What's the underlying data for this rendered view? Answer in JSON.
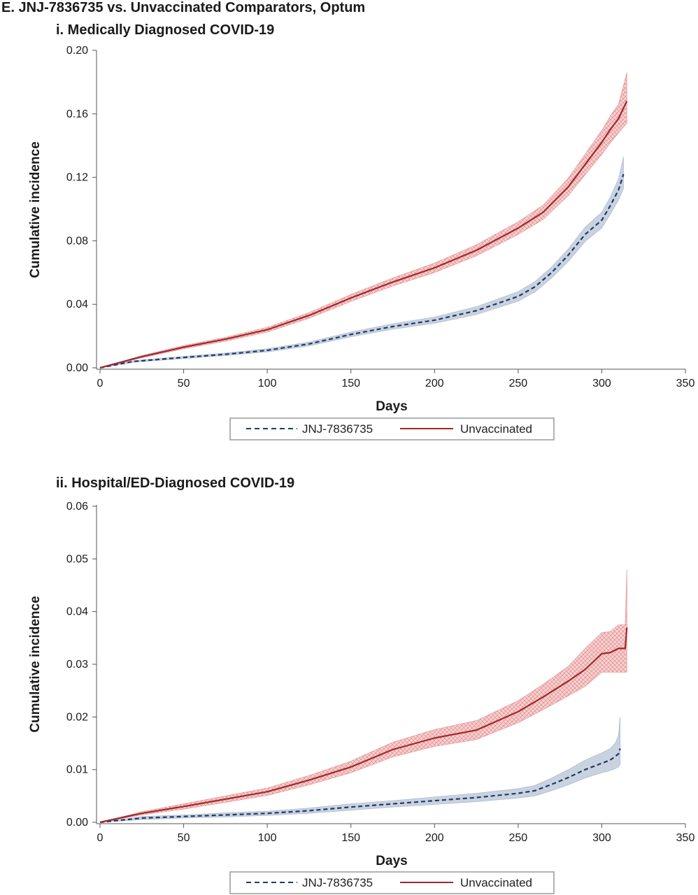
{
  "figure_title": "E. JNJ-7836735 vs. Unvaccinated Comparators, Optum",
  "colors": {
    "jnj_line": "#1f3a68",
    "jnj_band": "#c7d0de",
    "unvax_line": "#a0282a",
    "unvax_band": "#f6d3d3",
    "unvax_hatch": "#e48a8a",
    "legend_border": "#9a9a9a"
  },
  "chart_data": [
    {
      "type": "line",
      "title": "i. Medically Diagnosed COVID-19",
      "xlabel": "Days",
      "ylabel": "Cumulative incidence",
      "xlim": [
        0,
        350
      ],
      "ylim": [
        0,
        0.2
      ],
      "x_ticks": [
        "0",
        "50",
        "100",
        "150",
        "200",
        "250",
        "300",
        "350"
      ],
      "y_ticks": [
        "0.00",
        "0.04",
        "0.08",
        "0.12",
        "0.16",
        "0.20"
      ],
      "grid": false,
      "legend_position": "bottom",
      "series": [
        {
          "name": "JNJ-7836735",
          "style": "dashed",
          "x": [
            0,
            20,
            50,
            75,
            100,
            125,
            150,
            175,
            200,
            225,
            250,
            260,
            270,
            280,
            290,
            300,
            305,
            310,
            313
          ],
          "y": [
            0,
            0.004,
            0.0065,
            0.0085,
            0.011,
            0.015,
            0.021,
            0.026,
            0.03,
            0.036,
            0.045,
            0.051,
            0.06,
            0.071,
            0.084,
            0.093,
            0.102,
            0.112,
            0.122
          ],
          "lower": [
            0,
            0.0035,
            0.0058,
            0.0077,
            0.01,
            0.0138,
            0.0195,
            0.0243,
            0.028,
            0.0335,
            0.042,
            0.0477,
            0.0565,
            0.067,
            0.0795,
            0.088,
            0.0965,
            0.1055,
            0.113
          ],
          "upper": [
            0,
            0.0045,
            0.0072,
            0.0093,
            0.012,
            0.0162,
            0.0225,
            0.0277,
            0.032,
            0.0385,
            0.048,
            0.0543,
            0.0635,
            0.075,
            0.0885,
            0.098,
            0.1075,
            0.119,
            0.133
          ]
        },
        {
          "name": "Unvaccinated",
          "style": "solid",
          "x": [
            0,
            25,
            50,
            75,
            100,
            125,
            150,
            175,
            200,
            225,
            250,
            265,
            280,
            290,
            300,
            305,
            310,
            315
          ],
          "y": [
            0,
            0.007,
            0.013,
            0.018,
            0.024,
            0.033,
            0.044,
            0.054,
            0.063,
            0.074,
            0.088,
            0.098,
            0.114,
            0.128,
            0.142,
            0.15,
            0.157,
            0.168
          ],
          "lower": [
            0,
            0.0063,
            0.012,
            0.0168,
            0.0225,
            0.0312,
            0.0418,
            0.0515,
            0.06,
            0.0705,
            0.084,
            0.0935,
            0.1085,
            0.1215,
            0.1345,
            0.1415,
            0.148,
            0.154
          ],
          "upper": [
            0,
            0.0077,
            0.014,
            0.0192,
            0.0255,
            0.0348,
            0.0462,
            0.0565,
            0.066,
            0.0775,
            0.092,
            0.1025,
            0.1195,
            0.1345,
            0.1495,
            0.1585,
            0.166,
            0.186
          ]
        }
      ]
    },
    {
      "type": "line",
      "title": "ii. Hospital/ED-Diagnosed COVID-19",
      "xlabel": "Days",
      "ylabel": "Cumulative incidence",
      "xlim": [
        0,
        350
      ],
      "ylim": [
        0,
        0.06
      ],
      "x_ticks": [
        "0",
        "50",
        "100",
        "150",
        "200",
        "250",
        "300",
        "350"
      ],
      "y_ticks": [
        "0.00",
        "0.01",
        "0.02",
        "0.03",
        "0.04",
        "0.05",
        "0.06"
      ],
      "grid": false,
      "legend_position": "bottom",
      "series": [
        {
          "name": "JNJ-7836735",
          "style": "dashed",
          "x": [
            0,
            25,
            50,
            75,
            100,
            125,
            150,
            175,
            200,
            225,
            250,
            260,
            270,
            280,
            290,
            300,
            305,
            308,
            310,
            311
          ],
          "y": [
            0,
            0.0008,
            0.0011,
            0.0014,
            0.0017,
            0.0022,
            0.0029,
            0.0035,
            0.0041,
            0.0047,
            0.0055,
            0.006,
            0.0072,
            0.0085,
            0.01,
            0.0112,
            0.0118,
            0.0125,
            0.013,
            0.014
          ],
          "lower": [
            0,
            0.0005,
            0.0008,
            0.001,
            0.0013,
            0.0017,
            0.0023,
            0.0029,
            0.0034,
            0.0039,
            0.0046,
            0.005,
            0.006,
            0.0071,
            0.0084,
            0.0094,
            0.0098,
            0.0102,
            0.0105,
            0.011
          ],
          "upper": [
            0,
            0.0011,
            0.0014,
            0.0018,
            0.0021,
            0.0027,
            0.0035,
            0.0041,
            0.0048,
            0.0055,
            0.0064,
            0.007,
            0.0084,
            0.01,
            0.0118,
            0.0132,
            0.014,
            0.015,
            0.0165,
            0.02
          ]
        },
        {
          "name": "Unvaccinated",
          "style": "solid",
          "x": [
            0,
            25,
            50,
            75,
            100,
            125,
            150,
            175,
            200,
            225,
            250,
            265,
            280,
            290,
            300,
            305,
            310,
            314,
            315
          ],
          "y": [
            0,
            0.0017,
            0.003,
            0.0044,
            0.0058,
            0.008,
            0.0105,
            0.0138,
            0.016,
            0.0175,
            0.021,
            0.0238,
            0.0268,
            0.029,
            0.032,
            0.0322,
            0.033,
            0.033,
            0.037
          ],
          "lower": [
            0,
            0.0014,
            0.0025,
            0.0038,
            0.0051,
            0.0071,
            0.0094,
            0.0124,
            0.0144,
            0.0157,
            0.0189,
            0.0214,
            0.024,
            0.0258,
            0.0285,
            0.0285,
            0.0285,
            0.0285,
            0.0285
          ],
          "upper": [
            0,
            0.002,
            0.0035,
            0.005,
            0.0065,
            0.0089,
            0.0116,
            0.0152,
            0.0176,
            0.0193,
            0.0231,
            0.0262,
            0.0296,
            0.033,
            0.036,
            0.0362,
            0.0375,
            0.0375,
            0.048
          ]
        }
      ]
    }
  ]
}
